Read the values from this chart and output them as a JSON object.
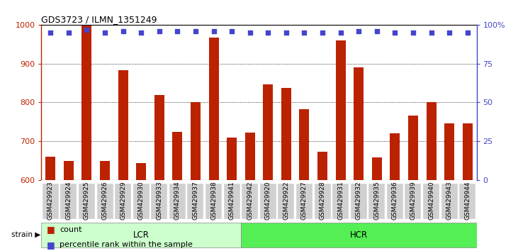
{
  "title": "GDS3723 / ILMN_1351249",
  "categories": [
    "GSM429923",
    "GSM429924",
    "GSM429925",
    "GSM429926",
    "GSM429929",
    "GSM429930",
    "GSM429933",
    "GSM429934",
    "GSM429937",
    "GSM429938",
    "GSM429941",
    "GSM429942",
    "GSM429920",
    "GSM429922",
    "GSM429927",
    "GSM429928",
    "GSM429931",
    "GSM429932",
    "GSM429935",
    "GSM429936",
    "GSM429939",
    "GSM429940",
    "GSM429943",
    "GSM429944"
  ],
  "bar_values": [
    660,
    648,
    998,
    648,
    884,
    643,
    820,
    724,
    800,
    968,
    710,
    722,
    847,
    837,
    783,
    672,
    960,
    890,
    658,
    720,
    766,
    800,
    745,
    745
  ],
  "dot_values": [
    95,
    95,
    97,
    95,
    96,
    95,
    96,
    96,
    96,
    96,
    96,
    95,
    95,
    95,
    95,
    95,
    95,
    96,
    96,
    95,
    95,
    95,
    95,
    95
  ],
  "lcr_count": 11,
  "hcr_count": 13,
  "bar_color": "#bb2200",
  "dot_color": "#4444cc",
  "ymin": 600,
  "ymax": 1000,
  "yticks_left": [
    600,
    700,
    800,
    900,
    1000
  ],
  "yticks_right": [
    0,
    25,
    50,
    75,
    100
  ],
  "lcr_label": "LCR",
  "hcr_label": "HCR",
  "strain_label": "strain",
  "legend_count": "count",
  "legend_percentile": "percentile rank within the sample",
  "plot_bg": "#ffffff",
  "tick_bg": "#d0d0d0",
  "lcr_fill": "#ccffcc",
  "hcr_fill": "#55ee55",
  "bar_bottom": 600,
  "fig_width": 7.31,
  "fig_height": 3.54
}
